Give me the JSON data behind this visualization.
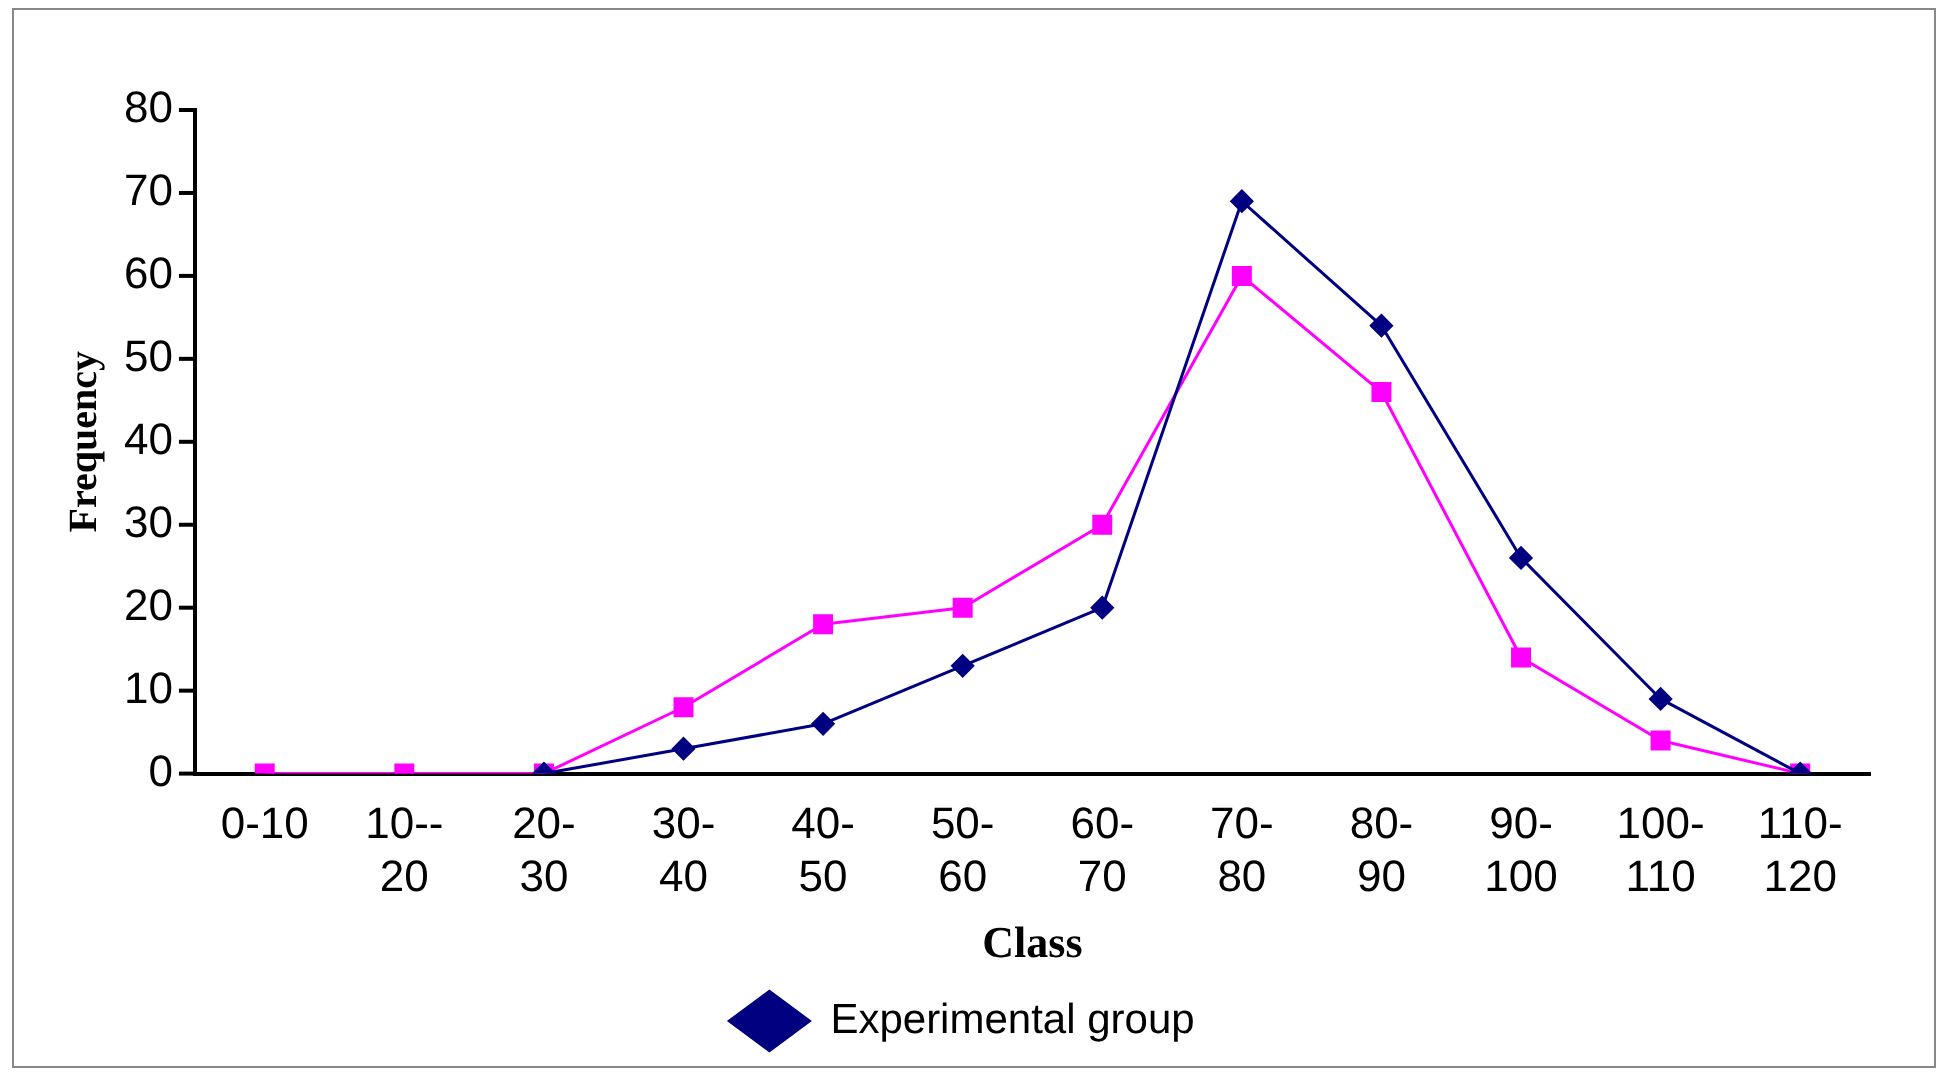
{
  "chart_data": {
    "type": "line",
    "xlabel": "Class",
    "ylabel": "Frequency",
    "categories": [
      "0-10",
      "10--20",
      "20-30",
      "30-40",
      "40-50",
      "50-60",
      "60-70",
      "70-80",
      "80-90",
      "90-100",
      "100-110",
      "110-120"
    ],
    "series": [
      {
        "name": "Experimental group",
        "color": "#000080",
        "marker": "diamond",
        "values": [
          null,
          null,
          0,
          3,
          6,
          13,
          20,
          69,
          54,
          26,
          9,
          0
        ]
      },
      {
        "color": "#ff00ff",
        "marker": "square",
        "values": [
          0,
          0,
          0,
          8,
          18,
          20,
          30,
          60,
          46,
          14,
          4,
          0
        ]
      }
    ],
    "ylim": [
      0,
      80
    ],
    "yticks": [
      0,
      10,
      20,
      30,
      40,
      50,
      60,
      70,
      80
    ],
    "grid": false,
    "legend": "bottom",
    "line_style": "solid"
  }
}
